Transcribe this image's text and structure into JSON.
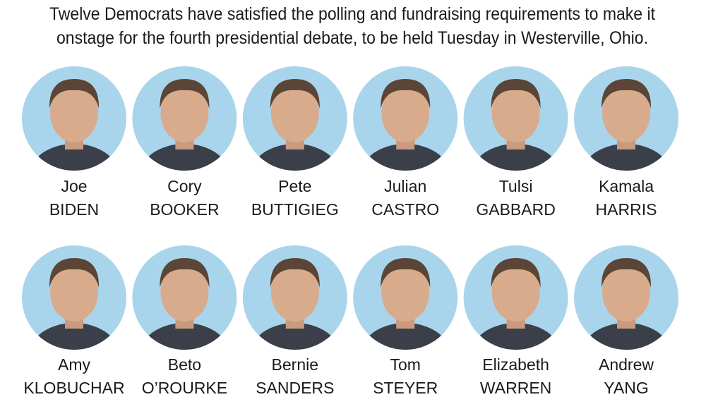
{
  "intro": {
    "lines": [
      "Twelve Democrats have satisfied the polling and fundraising requirements to make it",
      "onstage for the fourth presidential debate, to be held Tuesday in Westerville, Ohio."
    ]
  },
  "candidates": [
    {
      "first": "Joe",
      "last": "BIDEN"
    },
    {
      "first": "Cory",
      "last": "BOOKER"
    },
    {
      "first": "Pete",
      "last": "BUTTIGIEG"
    },
    {
      "first": "Julian",
      "last": "CASTRO"
    },
    {
      "first": "Tulsi",
      "last": "GABBARD"
    },
    {
      "first": "Kamala",
      "last": "HARRIS"
    },
    {
      "first": "Amy",
      "last": "KLOBUCHAR"
    },
    {
      "first": "Beto",
      "last": "O’ROURKE"
    },
    {
      "first": "Bernie",
      "last": "SANDERS"
    },
    {
      "first": "Tom",
      "last": "STEYER"
    },
    {
      "first": "Elizabeth",
      "last": "WARREN"
    },
    {
      "first": "Andrew",
      "last": "YANG"
    }
  ]
}
